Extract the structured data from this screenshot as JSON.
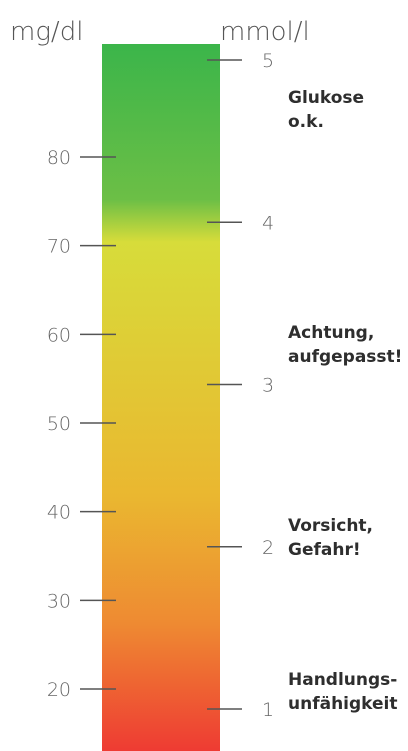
{
  "units": {
    "left": "mg/dl",
    "right": "mmol/l"
  },
  "scale": {
    "colors": {
      "top": "#3bb54a",
      "green": "#6cbf46",
      "yellow": "#d7dc3a",
      "amber": "#eab730",
      "orange": "#ee8a32",
      "red": "#ee3b33",
      "tick": "#555555"
    }
  },
  "chart_data": {
    "type": "gauge",
    "mg_dl_ticks": [
      80,
      70,
      60,
      50,
      40,
      30,
      20
    ],
    "mmol_l_ticks": [
      5,
      4,
      3,
      2,
      1
    ],
    "zones": [
      {
        "label": "Glukose\no.k.",
        "color": "#3bb54a"
      },
      {
        "label": "Achtung,\naufgepasst!",
        "color": "#d7dc3a"
      },
      {
        "label": "Vorsicht,\nGefahr!",
        "color": "#eab730"
      },
      {
        "label": "Handlungs-\nunfähigkeit",
        "color": "#ee3b33"
      }
    ]
  },
  "labels": {
    "zone_ok": "Glukose\no.k.",
    "zone_attention": "Achtung,\naufgepasst!",
    "zone_danger": "Vorsicht,\nGefahr!",
    "zone_incapacity": "Handlungs-\nunfähigkeit"
  }
}
